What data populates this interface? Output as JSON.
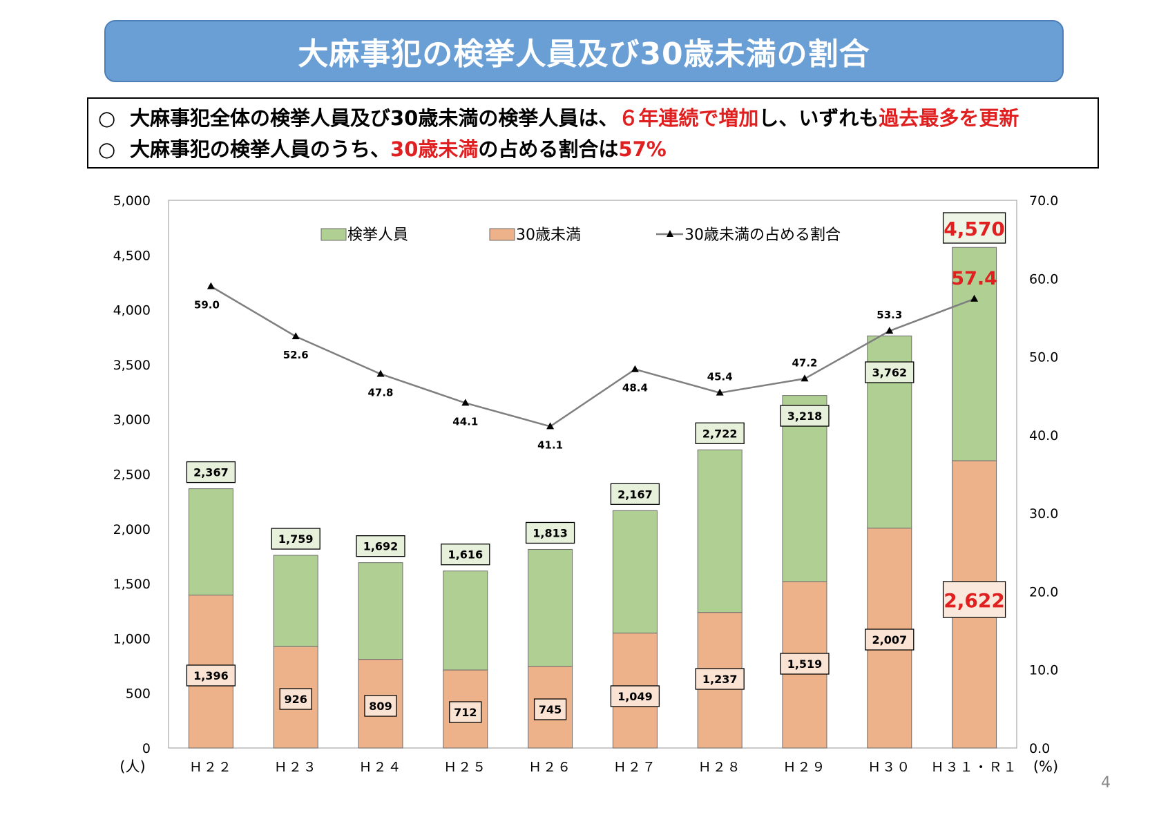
{
  "title": "大麻事犯の検挙人員及び30歳未満の割合",
  "summary": {
    "line1": {
      "bullet": "○",
      "part1": "大麻事犯全体の検挙人員及び30歳未満の検挙人員は、",
      "part2_red": "６年連続で増加",
      "part3": "し、いずれも",
      "part4_red": "過去最多を更新"
    },
    "line2": {
      "bullet": "○",
      "part1": "大麻事犯の検挙人員のうち、",
      "part2_red": "30歳未満",
      "part3": "の占める割合は",
      "part4_red": "57%"
    }
  },
  "page_number": "4",
  "colors": {
    "total": "#b0d093",
    "under30": "#eeb28b",
    "line": "#7f7f7f",
    "highlight": "#e02020",
    "banner": "#6a9fd6"
  },
  "chart_data": {
    "type": "bar",
    "stacked": true,
    "categories": [
      "Ｈ２２",
      "Ｈ２３",
      "Ｈ２４",
      "Ｈ２５",
      "Ｈ２６",
      "Ｈ２７",
      "Ｈ２８",
      "Ｈ２９",
      "Ｈ３０",
      "Ｈ３１・Ｒ１"
    ],
    "series": [
      {
        "name": "検挙人員",
        "values": [
          2367,
          1759,
          1692,
          1616,
          1813,
          2167,
          2722,
          3218,
          3762,
          4570
        ],
        "labels": [
          "2,367",
          "1,759",
          "1,692",
          "1,616",
          "1,813",
          "2,167",
          "2,722",
          "3,218",
          "3,762",
          "4,570"
        ]
      },
      {
        "name": "30歳未満",
        "values": [
          1396,
          926,
          809,
          712,
          745,
          1049,
          1237,
          1519,
          2007,
          2622
        ],
        "labels": [
          "1,396",
          "926",
          "809",
          "712",
          "745",
          "1,049",
          "1,237",
          "1,519",
          "2,007",
          "2,622"
        ]
      },
      {
        "name": "30歳未満の占める割合",
        "type": "line",
        "axis": "right",
        "values": [
          59.0,
          52.6,
          47.8,
          44.1,
          41.1,
          48.4,
          45.4,
          47.2,
          53.3,
          57.4
        ],
        "labels": [
          "59.0",
          "52.6",
          "47.8",
          "44.1",
          "41.1",
          "48.4",
          "45.4",
          "47.2",
          "53.3",
          "57.4"
        ]
      }
    ],
    "ylim": [
      0,
      5000
    ],
    "y_ticks": [
      "0",
      "500",
      "1,000",
      "1,500",
      "2,000",
      "2,500",
      "3,000",
      "3,500",
      "4,000",
      "4,500",
      "5,000"
    ],
    "y2lim": [
      0,
      70
    ],
    "y2_ticks": [
      "0.0",
      "10.0",
      "20.0",
      "30.0",
      "40.0",
      "50.0",
      "60.0",
      "70.0"
    ],
    "ylabel": "(人)",
    "y2label": "(%)",
    "legend": "top",
    "grid": false
  }
}
